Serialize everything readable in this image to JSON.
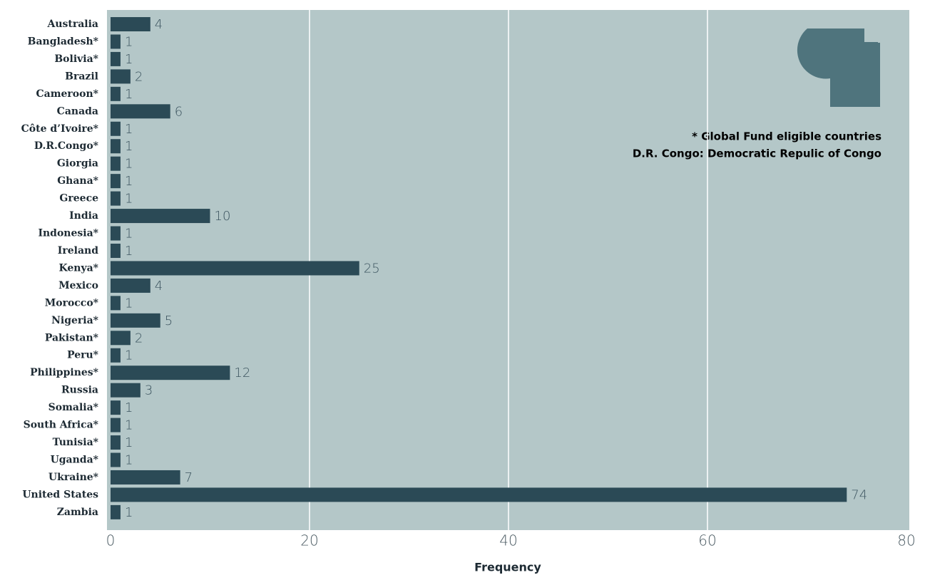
{
  "chart_data": {
    "type": "hbar",
    "categories": [
      "Australia",
      "Bangladesh*",
      "Bolivia*",
      "Brazil",
      "Cameroon*",
      "Canada",
      "Côte d’Ivoire*",
      "D.R.Congo*",
      "Giorgia",
      "Ghana*",
      "Greece",
      "India",
      "Indonesia*",
      "Ireland",
      "Kenya*",
      "Mexico",
      "Morocco*",
      "Nigeria*",
      "Pakistan*",
      "Peru*",
      "Philippines*",
      "Russia",
      "Somalia*",
      "South Africa*",
      "Tunisia*",
      "Uganda*",
      "Ukraine*",
      "United States",
      "Zambia"
    ],
    "values": [
      4,
      1,
      1,
      2,
      1,
      6,
      1,
      1,
      1,
      1,
      1,
      10,
      1,
      1,
      25,
      4,
      1,
      5,
      2,
      1,
      12,
      3,
      1,
      1,
      1,
      1,
      7,
      74,
      1
    ],
    "color": "#2b4a56",
    "x_label": "Frequency",
    "xlim": [
      0,
      80
    ],
    "xticks": [
      0,
      20,
      40,
      60,
      80
    ],
    "grid": true,
    "annotations": [
      "* Global Fund eligible countries",
      "D.R. Congo: Democratic Repulic of Congo"
    ]
  }
}
